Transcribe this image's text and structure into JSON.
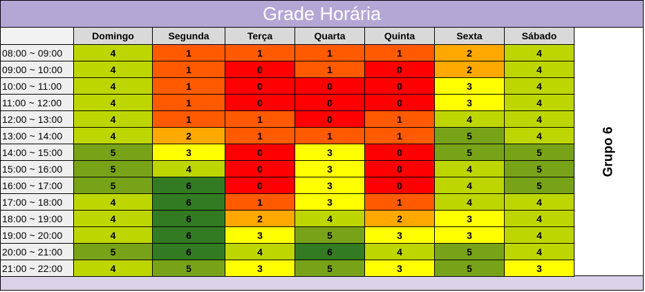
{
  "title": "Grade Horária",
  "group_label": "Grupo 6",
  "colors": {
    "title_bg": "#b4a7d6",
    "footer_bg": "#d9d2e9",
    "header_bg": "#d9d9d9",
    "time_bg": "#efefef",
    "scale": {
      "0": "#ff0000",
      "1": "#ff5a00",
      "2": "#ffa800",
      "3": "#ffff00",
      "4": "#bed600",
      "5": "#78a318",
      "6": "#337b22"
    }
  },
  "chart_data": {
    "type": "heatmap",
    "title": "Grade Horária",
    "columns": [
      "Domingo",
      "Segunda",
      "Terça",
      "Quarta",
      "Quinta",
      "Sexta",
      "Sábado"
    ],
    "rows": [
      "08:00 ~ 09:00",
      "09:00 ~ 10:00",
      "10:00 ~ 11:00",
      "11:00 ~ 12:00",
      "12:00 ~ 13:00",
      "13:00 ~ 14:00",
      "14:00 ~ 15:00",
      "15:00 ~ 16:00",
      "16:00 ~ 17:00",
      "17:00 ~ 18:00",
      "18:00 ~ 19:00",
      "19:00 ~ 20:00",
      "20:00 ~ 21:00",
      "21:00 ~ 22:00"
    ],
    "values": [
      [
        4,
        1,
        1,
        1,
        1,
        2,
        4
      ],
      [
        4,
        1,
        0,
        1,
        0,
        2,
        4
      ],
      [
        4,
        1,
        0,
        0,
        0,
        3,
        4
      ],
      [
        4,
        1,
        0,
        0,
        0,
        3,
        4
      ],
      [
        4,
        1,
        1,
        0,
        1,
        4,
        4
      ],
      [
        4,
        2,
        1,
        1,
        1,
        5,
        4
      ],
      [
        5,
        3,
        0,
        3,
        0,
        5,
        5
      ],
      [
        5,
        4,
        0,
        3,
        0,
        4,
        5
      ],
      [
        5,
        6,
        0,
        3,
        0,
        4,
        5
      ],
      [
        4,
        6,
        1,
        3,
        1,
        4,
        4
      ],
      [
        4,
        6,
        2,
        4,
        2,
        3,
        4
      ],
      [
        4,
        6,
        3,
        5,
        3,
        3,
        4
      ],
      [
        5,
        6,
        4,
        6,
        4,
        5,
        4
      ],
      [
        4,
        5,
        3,
        5,
        3,
        5,
        3
      ]
    ]
  }
}
